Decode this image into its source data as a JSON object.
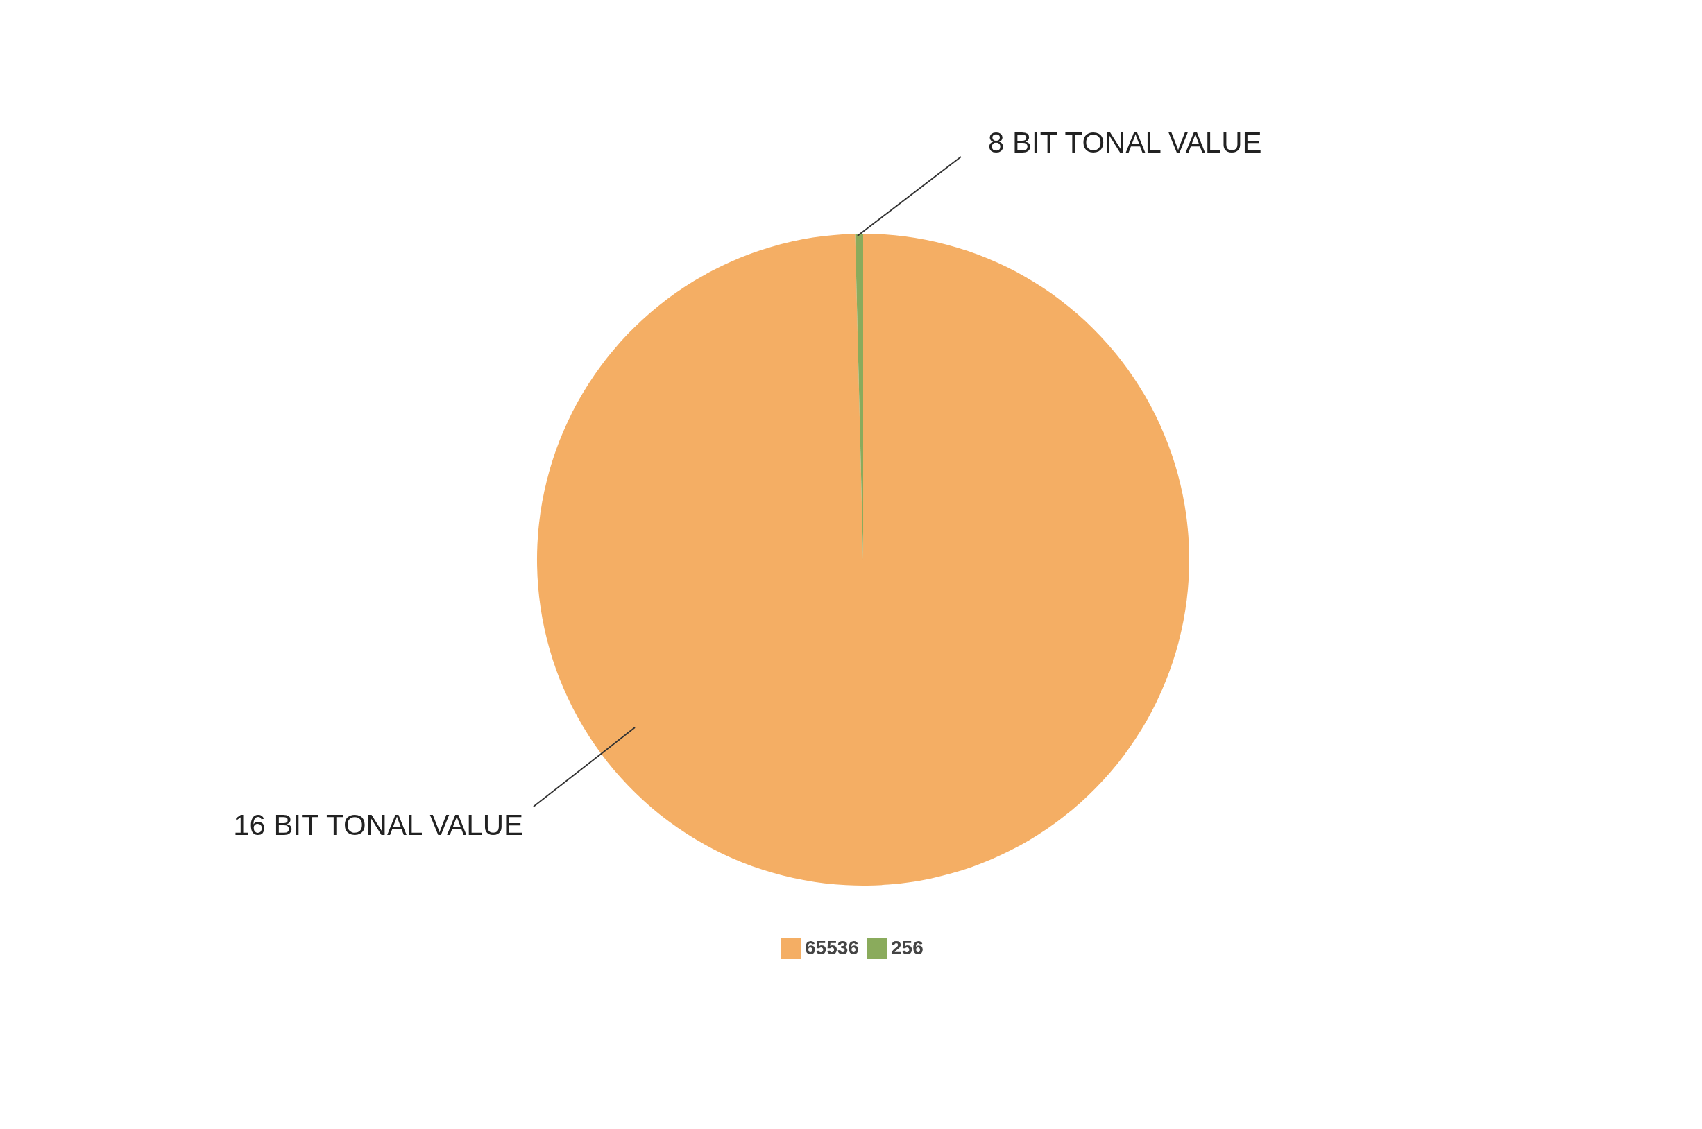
{
  "chart_data": {
    "type": "pie",
    "categories": [
      "65536",
      "256"
    ],
    "values": [
      65536,
      256
    ],
    "colors": [
      "#f4ae64",
      "#8aab5c"
    ],
    "legend": "bottom",
    "annotations": [
      {
        "text": "16 BIT TONAL VALUE",
        "x": "65536"
      },
      {
        "text": "8 BIT TONAL VALUE",
        "x": "256"
      }
    ]
  }
}
